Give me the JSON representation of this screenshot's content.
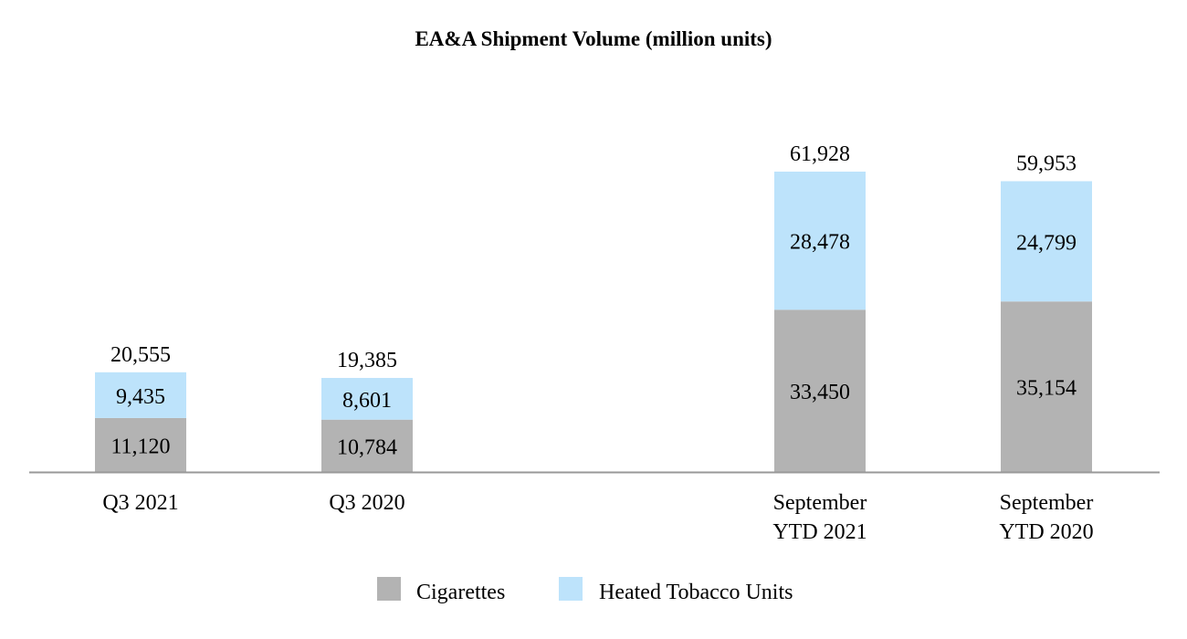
{
  "chart_data": {
    "type": "bar",
    "stacked": true,
    "title": "EA&A Shipment Volume (million units)",
    "xlabel": "",
    "ylabel": "",
    "grid": false,
    "legend_position": "bottom",
    "categories": [
      [
        "Q3 2021"
      ],
      [
        "Q3 2020"
      ],
      [
        "September",
        "YTD 2021"
      ],
      [
        "September",
        "YTD 2020"
      ]
    ],
    "series": [
      {
        "name": "Cigarettes",
        "color": "#b3b3b3",
        "values": [
          11120,
          10784,
          33450,
          35154
        ],
        "labels": [
          "11,120",
          "10,784",
          "33,450",
          "35,154"
        ]
      },
      {
        "name": "Heated Tobacco Units",
        "color": "#bde3fb",
        "values": [
          9435,
          8601,
          28478,
          24799
        ],
        "labels": [
          "9,435",
          "8,601",
          "28,478",
          "24,799"
        ]
      }
    ],
    "totals": [
      20555,
      19385,
      61928,
      59953
    ],
    "total_labels": [
      "20,555",
      "19,385",
      "61,928",
      "59,953"
    ],
    "ylim": [
      0,
      61928
    ]
  },
  "colors": {
    "axis": "#999999"
  }
}
